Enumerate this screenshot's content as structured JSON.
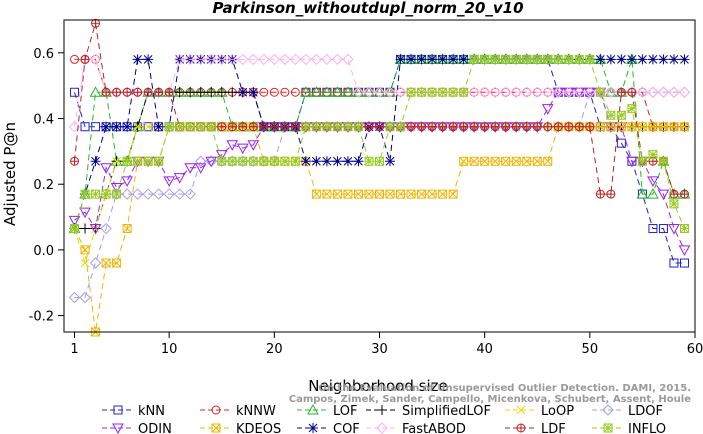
{
  "chart_data": {
    "type": "line",
    "title": "Parkinson_withoutdupl_norm_20_v10",
    "xlabel": "Neighborhood size",
    "ylabel": "Adjusted P@n",
    "xlim": [
      0,
      60
    ],
    "ylim": [
      -0.25,
      0.7
    ],
    "xticks": [
      1,
      10,
      20,
      30,
      40,
      50,
      60
    ],
    "yticks": [
      -0.2,
      0.0,
      0.2,
      0.4,
      0.6
    ],
    "x": [
      1,
      2,
      3,
      4,
      5,
      6,
      7,
      8,
      9,
      10,
      11,
      12,
      13,
      14,
      15,
      16,
      17,
      18,
      19,
      20,
      21,
      22,
      23,
      24,
      25,
      26,
      27,
      28,
      29,
      30,
      31,
      32,
      33,
      34,
      35,
      36,
      37,
      38,
      39,
      40,
      41,
      42,
      43,
      44,
      45,
      46,
      47,
      48,
      49,
      50,
      51,
      52,
      53,
      54,
      55,
      56,
      57,
      58,
      59
    ],
    "series": [
      {
        "name": "kNN",
        "color": "#2222cc",
        "marker": "square",
        "dash": "6,4",
        "values": [
          0.48,
          0.375,
          0.375,
          0.375,
          0.375,
          0.375,
          0.375,
          0.375,
          0.375,
          0.375,
          0.375,
          0.375,
          0.375,
          0.375,
          0.375,
          0.375,
          0.375,
          0.375,
          0.375,
          0.375,
          0.375,
          0.375,
          0.48,
          0.48,
          0.48,
          0.48,
          0.48,
          0.48,
          0.48,
          0.48,
          0.48,
          0.58,
          0.58,
          0.58,
          0.58,
          0.58,
          0.58,
          0.58,
          0.58,
          0.58,
          0.58,
          0.58,
          0.58,
          0.58,
          0.58,
          0.58,
          0.48,
          0.48,
          0.48,
          0.48,
          0.375,
          0.375,
          0.325,
          0.27,
          0.17,
          0.065,
          0.065,
          -0.04,
          -0.04
        ]
      },
      {
        "name": "kNNW",
        "color": "#dd2222",
        "marker": "circle",
        "dash": "6,4",
        "values": [
          0.58,
          0.58,
          0.58,
          0.48,
          0.48,
          0.48,
          0.48,
          0.48,
          0.48,
          0.48,
          0.48,
          0.48,
          0.48,
          0.48,
          0.48,
          0.48,
          0.48,
          0.48,
          0.48,
          0.48,
          0.48,
          0.48,
          0.48,
          0.48,
          0.48,
          0.48,
          0.48,
          0.48,
          0.48,
          0.48,
          0.48,
          0.48,
          0.48,
          0.48,
          0.48,
          0.48,
          0.48,
          0.48,
          0.48,
          0.48,
          0.48,
          0.48,
          0.48,
          0.48,
          0.48,
          0.48,
          0.48,
          0.48,
          0.48,
          0.48,
          0.48,
          0.48,
          0.48,
          0.48,
          0.48,
          0.375,
          0.375,
          0.375,
          0.375
        ]
      },
      {
        "name": "LOF",
        "color": "#22bb22",
        "marker": "triangle-up",
        "dash": "6,4",
        "values": [
          0.065,
          0.17,
          0.48,
          0.48,
          0.27,
          0.27,
          0.375,
          0.48,
          0.48,
          0.48,
          0.48,
          0.48,
          0.48,
          0.48,
          0.48,
          0.375,
          0.375,
          0.375,
          0.375,
          0.375,
          0.375,
          0.375,
          0.48,
          0.48,
          0.48,
          0.48,
          0.48,
          0.48,
          0.48,
          0.48,
          0.48,
          0.58,
          0.58,
          0.58,
          0.58,
          0.58,
          0.58,
          0.58,
          0.58,
          0.58,
          0.58,
          0.58,
          0.58,
          0.58,
          0.58,
          0.58,
          0.58,
          0.58,
          0.58,
          0.58,
          0.58,
          0.48,
          0.48,
          0.58,
          0.17,
          0.17,
          0.27,
          0.17,
          0.17
        ]
      },
      {
        "name": "SimplifiedLOF",
        "color": "#000000",
        "marker": "plus",
        "dash": "6,4",
        "values": [
          0.065,
          0.065,
          0.065,
          0.17,
          0.27,
          0.27,
          0.375,
          0.48,
          0.48,
          0.48,
          0.48,
          0.48,
          0.48,
          0.48,
          0.48,
          0.48,
          0.48,
          0.48,
          0.375,
          0.375,
          0.375,
          0.375,
          0.375,
          0.375,
          0.375,
          0.375,
          0.375,
          0.375,
          0.375,
          0.375,
          0.375,
          0.375,
          0.375,
          0.375,
          0.375,
          0.375,
          0.375,
          0.375,
          0.375,
          0.375,
          0.375,
          0.375,
          0.375,
          0.375,
          0.375,
          0.375,
          0.375,
          0.375,
          0.375,
          0.375,
          0.375,
          0.375,
          0.375,
          0.375,
          0.375,
          0.375,
          0.375,
          0.375,
          0.375
        ]
      },
      {
        "name": "LoOP",
        "color": "#e8d800",
        "marker": "x",
        "dash": "6,4",
        "values": [
          0.065,
          -0.04,
          0.065,
          0.17,
          0.27,
          0.27,
          0.375,
          0.375,
          0.375,
          0.375,
          0.375,
          0.375,
          0.375,
          0.375,
          0.375,
          0.375,
          0.375,
          0.375,
          0.375,
          0.375,
          0.375,
          0.375,
          0.375,
          0.375,
          0.375,
          0.375,
          0.375,
          0.375,
          0.375,
          0.375,
          0.375,
          0.375,
          0.375,
          0.375,
          0.375,
          0.375,
          0.375,
          0.375,
          0.375,
          0.375,
          0.375,
          0.375,
          0.375,
          0.375,
          0.375,
          0.375,
          0.375,
          0.375,
          0.375,
          0.375,
          0.375,
          0.375,
          0.375,
          0.375,
          0.375,
          0.375,
          0.375,
          0.375,
          0.375
        ]
      },
      {
        "name": "LDOF",
        "color": "#a0a0ee",
        "marker": "diamond",
        "dash": "6,4",
        "values": [
          -0.145,
          -0.145,
          -0.04,
          0.065,
          0.17,
          0.17,
          0.17,
          0.17,
          0.17,
          0.17,
          0.17,
          0.17,
          0.27,
          0.27,
          0.27,
          0.27,
          0.27,
          0.27,
          0.27,
          0.27,
          0.375,
          0.375,
          0.375,
          0.375,
          0.375,
          0.375,
          0.375,
          0.375,
          0.375,
          0.375,
          0.375,
          0.375,
          0.375,
          0.375,
          0.375,
          0.375,
          0.375,
          0.375,
          0.375,
          0.375,
          0.375,
          0.375,
          0.375,
          0.375,
          0.375,
          0.375,
          0.375,
          0.375,
          0.375,
          0.48,
          0.48,
          0.48,
          0.48,
          0.48,
          0.48,
          0.48,
          0.48,
          0.48,
          0.48
        ]
      },
      {
        "name": "ODIN",
        "color": "#9922ee",
        "marker": "triangle-down",
        "dash": "6,4",
        "values": [
          0.09,
          0.115,
          0.065,
          0.25,
          0.19,
          0.21,
          0.27,
          0.27,
          0.27,
          0.21,
          0.22,
          0.25,
          0.25,
          0.27,
          0.29,
          0.32,
          0.31,
          0.32,
          0.375,
          0.375,
          0.375,
          0.375,
          0.375,
          0.375,
          0.375,
          0.375,
          0.375,
          0.375,
          0.375,
          0.375,
          0.375,
          0.375,
          0.375,
          0.375,
          0.375,
          0.375,
          0.375,
          0.375,
          0.375,
          0.375,
          0.375,
          0.375,
          0.375,
          0.375,
          0.375,
          0.43,
          0.48,
          0.48,
          0.48,
          0.48,
          0.48,
          0.375,
          0.375,
          0.27,
          0.27,
          0.21,
          0.17,
          0.065,
          0.0
        ]
      },
      {
        "name": "KDEOS",
        "color": "#f0b400",
        "marker": "boxed-x",
        "dash": "6,4",
        "values": [
          0.065,
          0.0,
          -0.25,
          -0.04,
          -0.04,
          0.065,
          0.27,
          0.27,
          0.27,
          0.375,
          0.375,
          0.375,
          0.375,
          0.375,
          0.375,
          0.375,
          0.375,
          0.375,
          0.27,
          0.27,
          0.27,
          0.27,
          0.27,
          0.17,
          0.17,
          0.17,
          0.17,
          0.17,
          0.17,
          0.17,
          0.17,
          0.17,
          0.17,
          0.17,
          0.17,
          0.17,
          0.17,
          0.27,
          0.27,
          0.27,
          0.27,
          0.27,
          0.27,
          0.27,
          0.27,
          0.27,
          0.375,
          0.375,
          0.375,
          0.375,
          0.375,
          0.375,
          0.375,
          0.375,
          0.375,
          0.375,
          0.375,
          0.375,
          0.375
        ]
      },
      {
        "name": "COF",
        "color": "#000088",
        "marker": "asterisk",
        "dash": "6,4",
        "values": [
          0.065,
          0.17,
          0.27,
          0.375,
          0.375,
          0.375,
          0.58,
          0.58,
          0.375,
          0.375,
          0.58,
          0.58,
          0.58,
          0.58,
          0.58,
          0.58,
          0.48,
          0.48,
          0.375,
          0.375,
          0.375,
          0.375,
          0.27,
          0.27,
          0.27,
          0.27,
          0.27,
          0.27,
          0.375,
          0.375,
          0.27,
          0.58,
          0.58,
          0.58,
          0.58,
          0.58,
          0.58,
          0.58,
          0.58,
          0.58,
          0.58,
          0.58,
          0.58,
          0.58,
          0.58,
          0.58,
          0.58,
          0.58,
          0.58,
          0.58,
          0.58,
          0.58,
          0.58,
          0.58,
          0.58,
          0.58,
          0.58,
          0.58,
          0.58
        ]
      },
      {
        "name": "FastABOD",
        "color": "#ffb0f0",
        "marker": "diamond",
        "dash": "6,4",
        "values": [
          0.375,
          0.58,
          0.58,
          0.48,
          0.48,
          0.48,
          0.48,
          0.48,
          0.48,
          0.48,
          0.58,
          0.58,
          0.58,
          0.58,
          0.58,
          0.58,
          0.58,
          0.58,
          0.58,
          0.58,
          0.58,
          0.58,
          0.58,
          0.58,
          0.58,
          0.58,
          0.58,
          0.48,
          0.48,
          0.48,
          0.48,
          0.48,
          0.48,
          0.48,
          0.48,
          0.48,
          0.48,
          0.48,
          0.48,
          0.48,
          0.48,
          0.48,
          0.48,
          0.48,
          0.48,
          0.48,
          0.48,
          0.48,
          0.48,
          0.48,
          0.48,
          0.48,
          0.48,
          0.48,
          0.48,
          0.48,
          0.48,
          0.48,
          0.48
        ]
      },
      {
        "name": "LDF",
        "color": "#bb2222",
        "marker": "circle-plus",
        "dash": "6,4",
        "values": [
          0.27,
          0.58,
          0.69,
          0.48,
          0.48,
          0.48,
          0.48,
          0.48,
          0.48,
          0.48,
          0.375,
          0.375,
          0.375,
          0.375,
          0.375,
          0.375,
          0.375,
          0.375,
          0.375,
          0.375,
          0.375,
          0.375,
          0.375,
          0.375,
          0.375,
          0.375,
          0.375,
          0.375,
          0.375,
          0.375,
          0.375,
          0.375,
          0.375,
          0.375,
          0.375,
          0.375,
          0.375,
          0.375,
          0.375,
          0.375,
          0.375,
          0.375,
          0.375,
          0.375,
          0.375,
          0.375,
          0.375,
          0.375,
          0.375,
          0.375,
          0.17,
          0.17,
          0.48,
          0.48,
          0.27,
          0.27,
          0.27,
          0.17,
          0.17
        ]
      },
      {
        "name": "INFLO",
        "color": "#99cc22",
        "marker": "star-box",
        "dash": "6,4",
        "values": [
          0.065,
          0.17,
          0.17,
          0.17,
          0.17,
          0.27,
          0.27,
          0.27,
          0.27,
          0.375,
          0.375,
          0.375,
          0.375,
          0.375,
          0.27,
          0.27,
          0.27,
          0.27,
          0.27,
          0.27,
          0.27,
          0.27,
          0.375,
          0.375,
          0.375,
          0.375,
          0.375,
          0.375,
          0.27,
          0.27,
          0.375,
          0.375,
          0.48,
          0.48,
          0.48,
          0.48,
          0.48,
          0.48,
          0.58,
          0.58,
          0.58,
          0.58,
          0.58,
          0.58,
          0.58,
          0.58,
          0.58,
          0.58,
          0.58,
          0.58,
          0.48,
          0.41,
          0.41,
          0.43,
          0.27,
          0.29,
          0.27,
          0.14,
          0.065
        ]
      }
    ],
    "annotation": "Campos, Zimek, Sander, Campello, Micenkova, Schubert, Assent, Houle",
    "annotation_top": "On the Evaluation of Unsupervised Outlier Detection. DAMI, 2015.",
    "legend_position": "bottom",
    "grid": false
  }
}
